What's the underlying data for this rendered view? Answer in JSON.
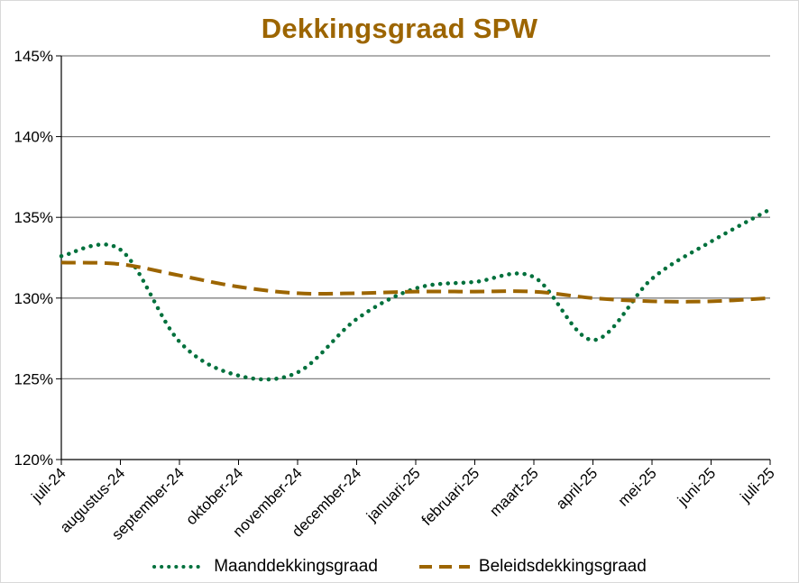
{
  "chart_data": {
    "type": "line",
    "title": "Dekkingsgraad  SPW",
    "xlabel": "",
    "ylabel": "",
    "ylim": [
      120,
      145
    ],
    "yticks": [
      "120%",
      "125%",
      "130%",
      "135%",
      "140%",
      "145%"
    ],
    "ytick_values": [
      120,
      125,
      130,
      135,
      140,
      145
    ],
    "categories": [
      "juli-24",
      "augustus-24",
      "september-24",
      "oktober-24",
      "november-24",
      "december-24",
      "januari-25",
      "februari-25",
      "maart-25",
      "april-25",
      "mei-25",
      "juni-25",
      "juli-25"
    ],
    "grid": true,
    "legend_position": "bottom",
    "series": [
      {
        "name": "Maanddekkingsgraad",
        "style": "dotted",
        "color": "#00703c",
        "values": [
          132.6,
          133.0,
          127.3,
          125.2,
          125.4,
          128.7,
          130.6,
          131.0,
          131.3,
          127.4,
          131.2,
          133.5,
          135.5
        ]
      },
      {
        "name": "Beleidsdekkingsgraad",
        "style": "dashed",
        "color": "#9c6500",
        "values": [
          132.2,
          132.1,
          131.4,
          130.7,
          130.3,
          130.3,
          130.4,
          130.4,
          130.4,
          130.0,
          129.8,
          129.8,
          130.0
        ]
      }
    ]
  }
}
